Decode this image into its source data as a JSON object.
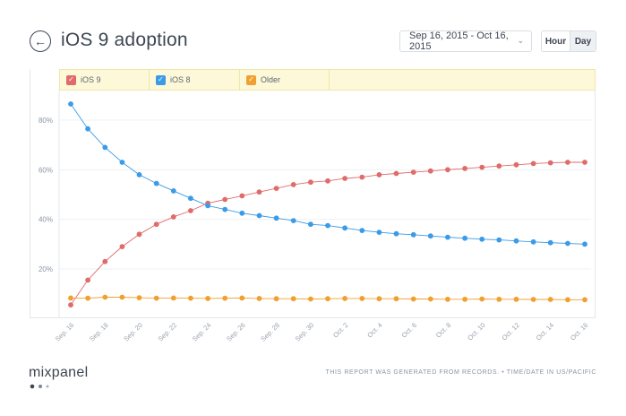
{
  "header": {
    "back_icon": "back-arrow-icon",
    "title": "iOS 9 adoption",
    "date_range": "Sep 16, 2015 - Oct 16, 2015",
    "dropdown_icon": "chevron-down-icon",
    "unit_options": [
      "Hour",
      "Day"
    ],
    "unit_selected": "Day"
  },
  "legend": {
    "items": [
      {
        "label": "iOS 9",
        "color": "#e06b6b",
        "checked": true
      },
      {
        "label": "iOS 8",
        "color": "#3a9be8",
        "checked": true
      },
      {
        "label": "Older",
        "color": "#f0a030",
        "checked": true
      }
    ]
  },
  "chart_data": {
    "type": "line",
    "title": "",
    "xlabel": "",
    "ylabel": "",
    "x_tick_labels": [
      "Sep. 16",
      "Sep. 18",
      "Sep. 20",
      "Sep. 22",
      "Sep. 24",
      "Sep. 26",
      "Sep. 28",
      "Sep. 30",
      "Oct. 2",
      "Oct. 4",
      "Oct. 6",
      "Oct. 8",
      "Oct. 10",
      "Oct. 12",
      "Oct. 14",
      "Oct. 16"
    ],
    "y_tick_labels": [
      "20%",
      "40%",
      "60%",
      "80%"
    ],
    "y_ticks": [
      20,
      40,
      60,
      80
    ],
    "ylim": [
      0,
      90
    ],
    "grid": true,
    "legend_position": "top",
    "series": [
      {
        "name": "iOS 9",
        "color": "#e06b6b",
        "values": [
          5.5,
          15.5,
          23,
          29,
          34,
          38,
          41,
          43.5,
          46.5,
          48,
          49.5,
          51,
          52.5,
          54,
          55,
          55.5,
          56.5,
          57,
          58,
          58.5,
          59,
          59.5,
          60,
          60.5,
          61,
          61.5,
          62,
          62.5,
          62.8,
          63,
          63
        ]
      },
      {
        "name": "iOS 8",
        "color": "#3a9be8",
        "values": [
          86.5,
          76.5,
          69,
          63,
          58,
          54.5,
          51.5,
          48.5,
          45.5,
          44,
          42.5,
          41.5,
          40.5,
          39.5,
          38,
          37.5,
          36.5,
          35.5,
          34.8,
          34.2,
          33.8,
          33.3,
          32.8,
          32.4,
          32,
          31.7,
          31.3,
          30.9,
          30.6,
          30.3,
          30
        ]
      },
      {
        "name": "Older",
        "color": "#f0a030",
        "values": [
          8.3,
          8.2,
          8.6,
          8.6,
          8.4,
          8.2,
          8.3,
          8.2,
          8.1,
          8.2,
          8.3,
          8.1,
          8.0,
          8.0,
          7.9,
          8.0,
          8.1,
          8.1,
          8.0,
          8.0,
          7.9,
          7.9,
          7.8,
          7.8,
          7.9,
          7.8,
          7.8,
          7.7,
          7.7,
          7.6,
          7.6
        ]
      }
    ]
  },
  "footer": {
    "logo": "mixpanel",
    "note": "THIS REPORT WAS GENERATED FROM RECORDS. • TIME/DATE IN US/PACIFIC"
  }
}
